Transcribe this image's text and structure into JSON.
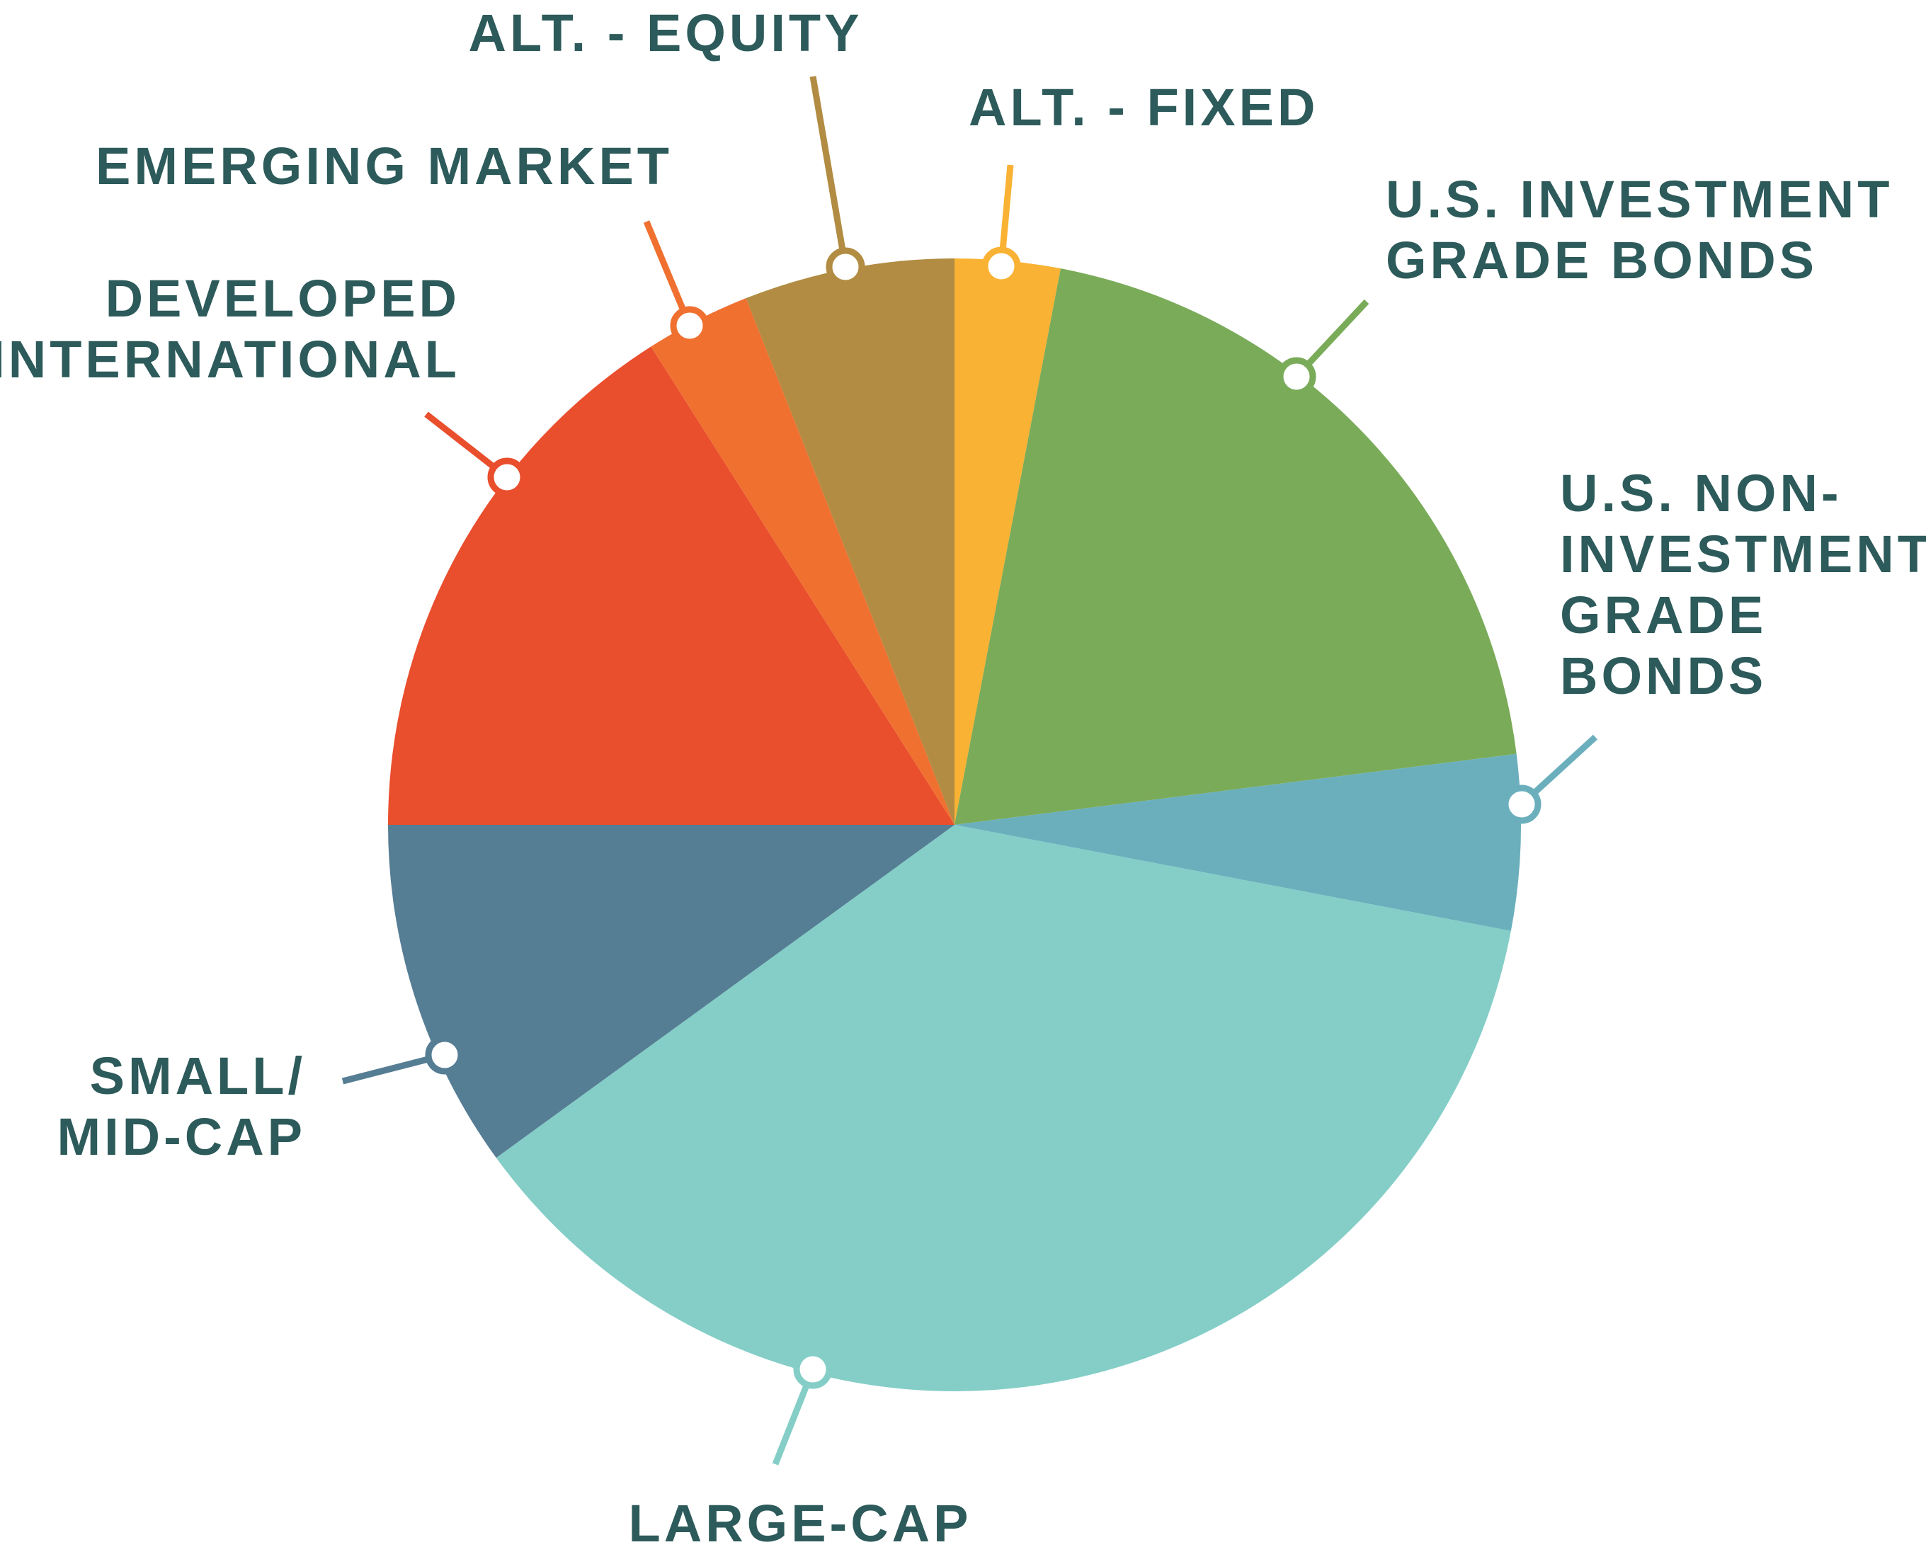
{
  "chart_data": {
    "type": "pie",
    "title": "",
    "slices": [
      {
        "name": "ALT. - FIXED",
        "lines": [
          "ALT. - FIXED"
        ],
        "value": 3,
        "color": "#f9b233",
        "anchor": "start"
      },
      {
        "name": "U.S. INVESTMENT GRADE BONDS",
        "lines": [
          "U.S. INVESTMENT",
          "GRADE BONDS"
        ],
        "value": 20,
        "color": "#7aab59",
        "anchor": "start"
      },
      {
        "name": "U.S. NON-INVESTMENT GRADE BONDS",
        "lines": [
          "U.S. NON-",
          "INVESTMENT",
          "GRADE",
          "BONDS"
        ],
        "value": 5,
        "color": "#6bafbd",
        "anchor": "start"
      },
      {
        "name": "LARGE-CAP",
        "lines": [
          "LARGE-CAP"
        ],
        "value": 37,
        "color": "#84cec7",
        "anchor": "middle"
      },
      {
        "name": "SMALL/MID-CAP",
        "lines": [
          "SMALL/",
          "MID-CAP"
        ],
        "value": 10,
        "color": "#557d94",
        "anchor": "end"
      },
      {
        "name": "DEVELOPED INTERNATIONAL",
        "lines": [
          "DEVELOPED",
          "INTERNATIONAL"
        ],
        "value": 16,
        "color": "#e94e2d",
        "anchor": "end"
      },
      {
        "name": "EMERGING MARKET",
        "lines": [
          "EMERGING MARKET"
        ],
        "value": 3,
        "color": "#f07030",
        "anchor": "end"
      },
      {
        "name": "ALT. - EQUITY",
        "lines": [
          "ALT. - EQUITY"
        ],
        "value": 6,
        "color": "#b18c42",
        "anchor": "middle"
      }
    ],
    "text_color": "#2d5a5a",
    "legend": "callout labels around pie"
  }
}
